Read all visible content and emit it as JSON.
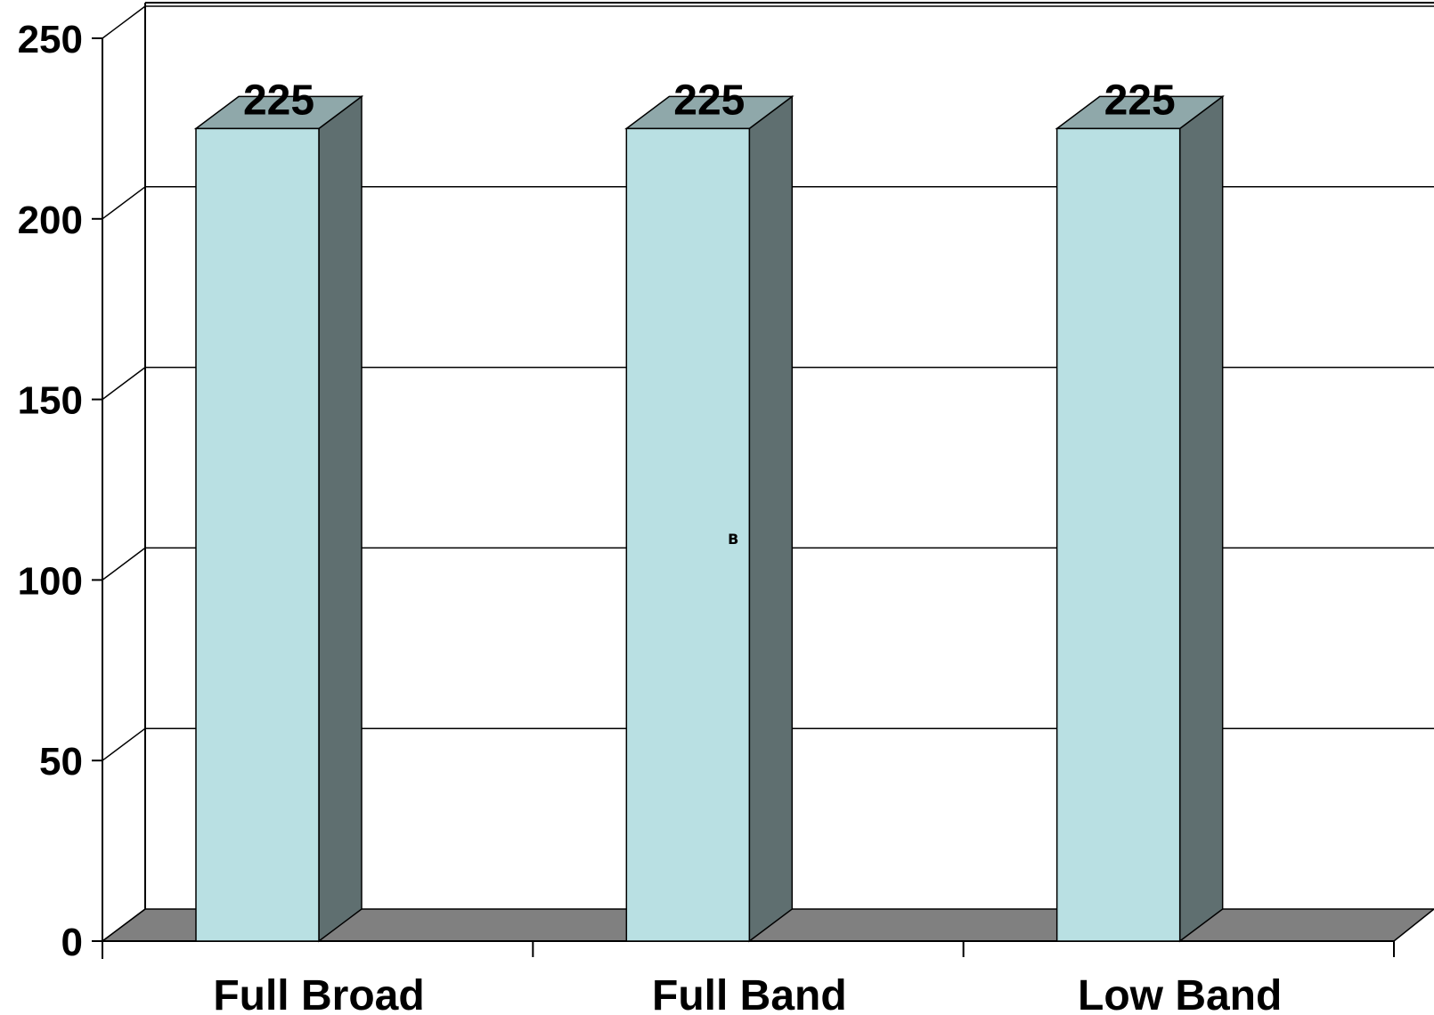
{
  "chart_data": {
    "type": "bar",
    "categories": [
      "Full Broad",
      "Full Band",
      "Low Band"
    ],
    "values": [
      225,
      225,
      225
    ],
    "title": "",
    "xlabel": "",
    "ylabel": "",
    "ylim": [
      0,
      250
    ],
    "yticks": [
      0,
      50,
      100,
      150,
      200,
      250
    ],
    "grid": true,
    "legend": "none",
    "annotations": [
      "B"
    ],
    "colors": {
      "bar_front": "#b9e0e3",
      "bar_top": "#8fa8aa",
      "bar_side": "#5f6f70",
      "floor": "#808080",
      "grid": "#000000"
    }
  }
}
